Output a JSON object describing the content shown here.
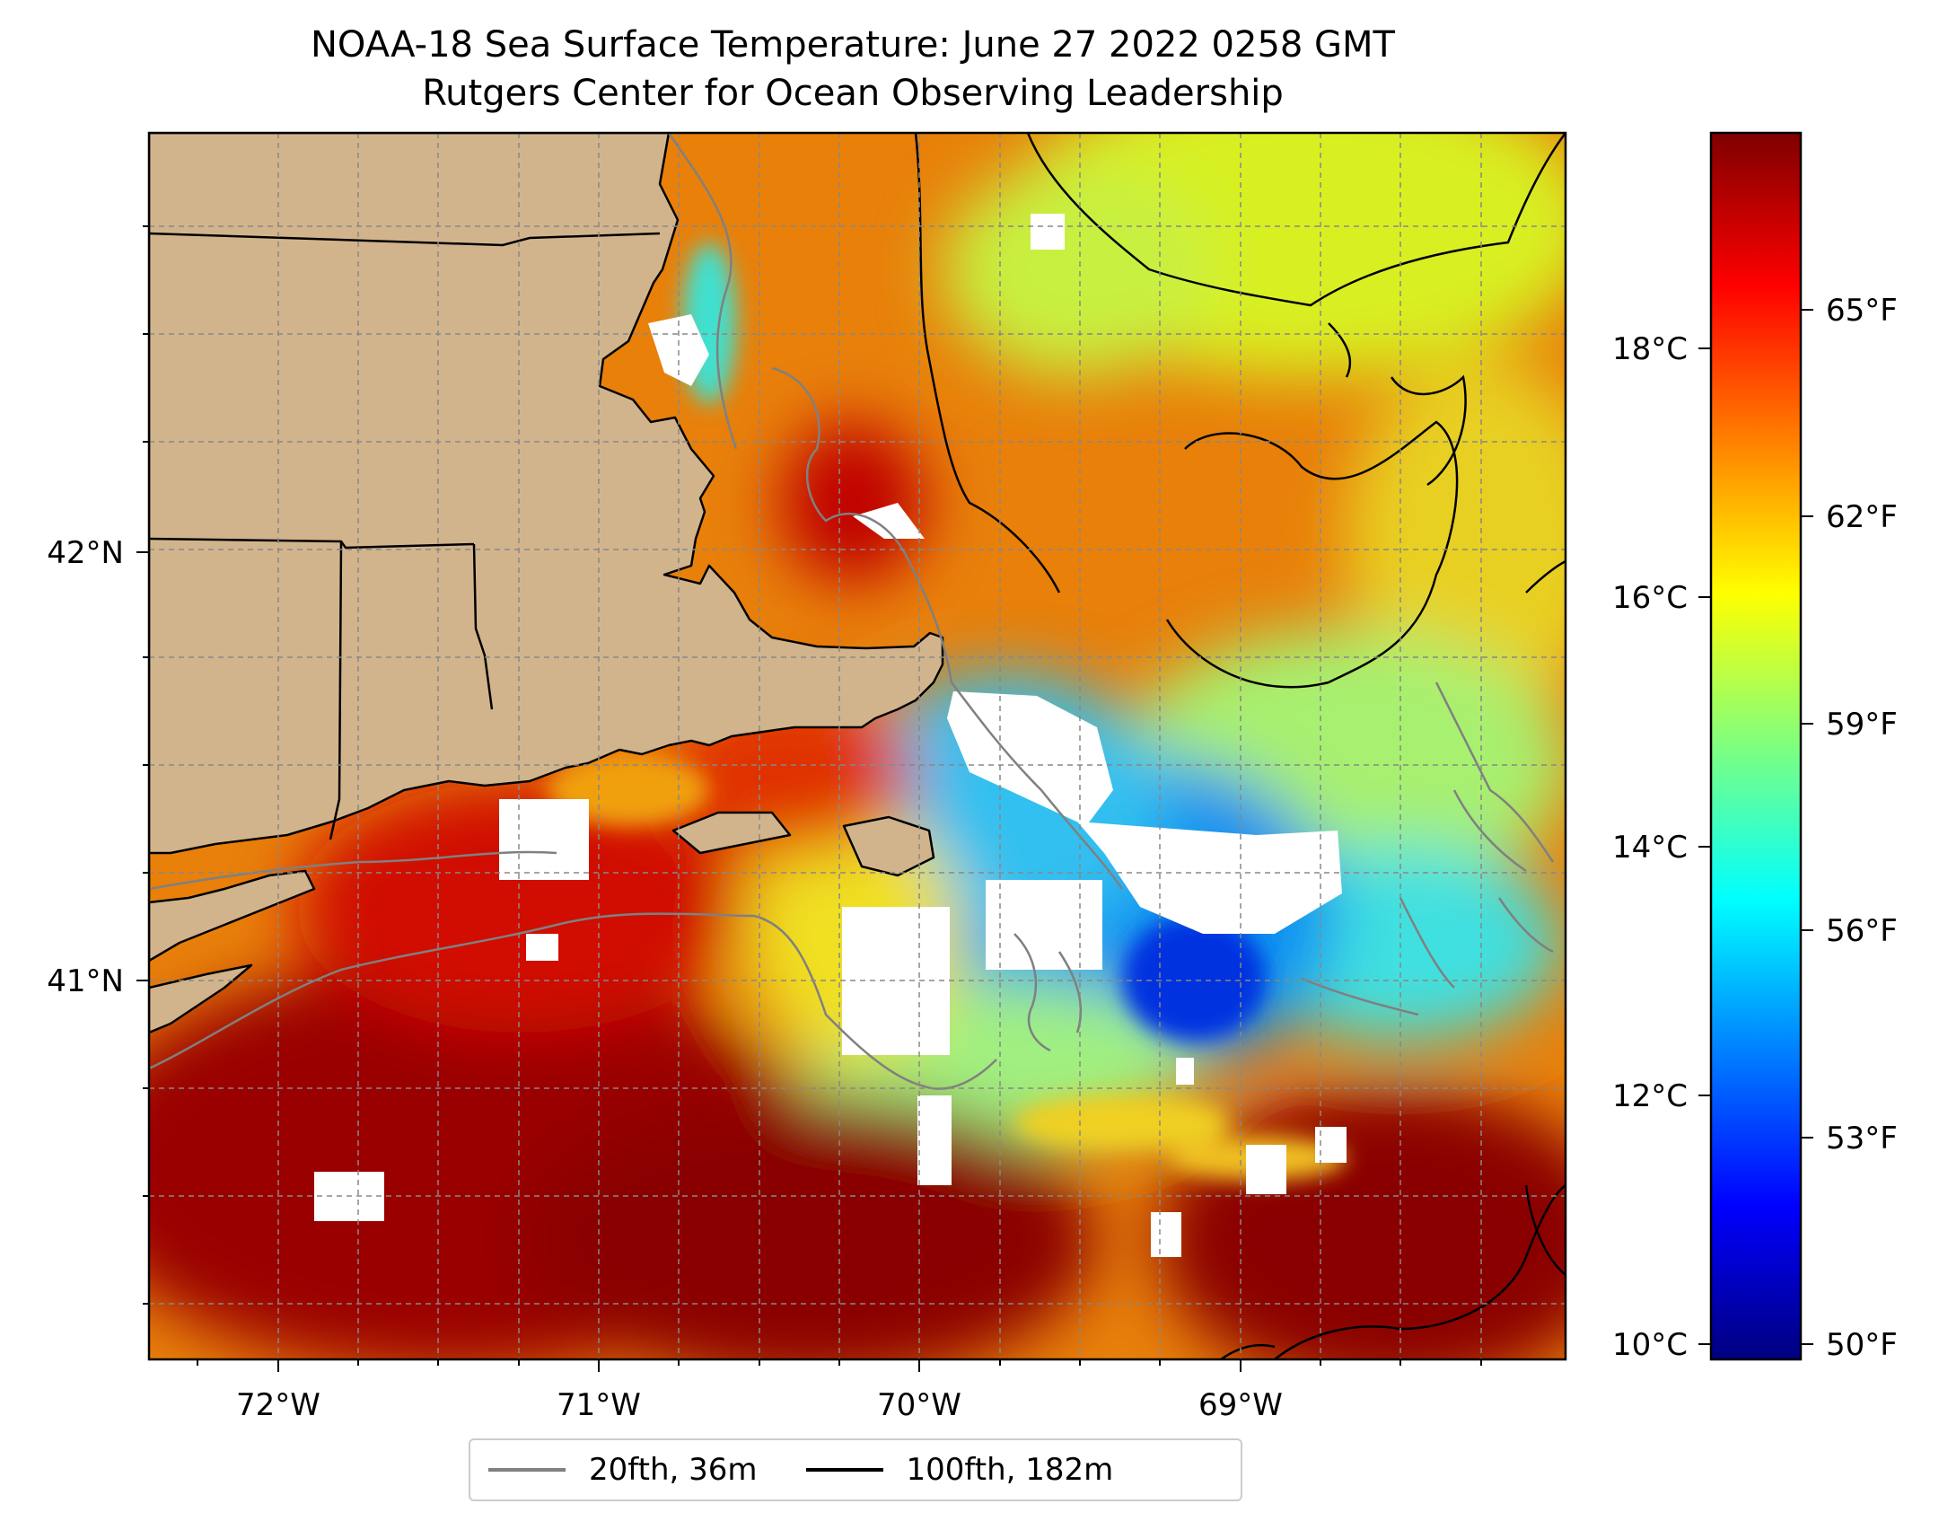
{
  "title": {
    "line1": "NOAA-18 Sea Surface Temperature: June 27 2022 0258 GMT",
    "line2": "Rutgers Center for Ocean Observing Leadership"
  },
  "map": {
    "longitude_labels": [
      "72°W",
      "71°W",
      "70°W",
      "69°W"
    ],
    "latitude_labels": [
      "42°N",
      "41°N"
    ],
    "land_color": "#d2b48c",
    "gridlines": "dashed"
  },
  "colorbar": {
    "celsius_labels": [
      "18°C",
      "16°C",
      "14°C",
      "12°C",
      "10°C"
    ],
    "fahrenheit_labels": [
      "65°F",
      "62°F",
      "59°F",
      "56°F",
      "53°F",
      "50°F"
    ],
    "colormap": [
      "#00007f",
      "#0000ff",
      "#007fff",
      "#00ffff",
      "#7fff7f",
      "#ffff00",
      "#ff7f00",
      "#ff0000",
      "#7f0000"
    ]
  },
  "legend": {
    "items": [
      {
        "label": "20fth, 36m",
        "color": "#808080"
      },
      {
        "label": "100fth, 182m",
        "color": "#000000"
      }
    ]
  }
}
